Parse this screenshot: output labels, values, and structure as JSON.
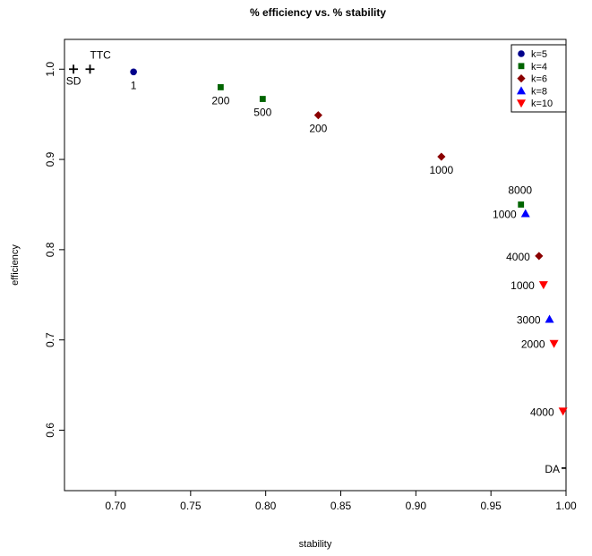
{
  "chart_data": {
    "type": "scatter",
    "title": "% efficiency vs. % stability",
    "xlabel": "stability",
    "ylabel": "efficiency",
    "xlim": [
      0.666,
      1.0
    ],
    "ylim": [
      0.533,
      1.033
    ],
    "x_ticks": [
      "0.70",
      "0.75",
      "0.80",
      "0.85",
      "0.90",
      "0.95",
      "1.00"
    ],
    "y_ticks": [
      "0.6",
      "0.7",
      "0.8",
      "0.9",
      "1.0"
    ],
    "legend_position": "top-right",
    "legend": [
      {
        "label": "k=5",
        "color": "#00008b",
        "shape": "circle"
      },
      {
        "label": "k=4",
        "color": "#006400",
        "shape": "square"
      },
      {
        "label": "k=6",
        "color": "#8b0000",
        "shape": "diamond"
      },
      {
        "label": "k=8",
        "color": "#0000ff",
        "shape": "triangle-up"
      },
      {
        "label": "k=10",
        "color": "#ff0000",
        "shape": "triangle-down"
      }
    ],
    "series": [
      {
        "name": "k=5",
        "color": "#00008b",
        "shape": "circle",
        "points": [
          {
            "x": 0.712,
            "y": 0.997,
            "label": "1"
          }
        ]
      },
      {
        "name": "k=4",
        "color": "#006400",
        "shape": "square",
        "points": [
          {
            "x": 0.77,
            "y": 0.98,
            "label": "200"
          },
          {
            "x": 0.798,
            "y": 0.967,
            "label": "500"
          },
          {
            "x": 0.97,
            "y": 0.85,
            "label": "8000"
          }
        ]
      },
      {
        "name": "k=6",
        "color": "#8b0000",
        "shape": "diamond",
        "points": [
          {
            "x": 0.835,
            "y": 0.949,
            "label": "200"
          },
          {
            "x": 0.917,
            "y": 0.903,
            "label": "1000"
          },
          {
            "x": 0.982,
            "y": 0.793,
            "label": "4000"
          }
        ]
      },
      {
        "name": "k=8",
        "color": "#0000ff",
        "shape": "triangle-up",
        "points": [
          {
            "x": 0.973,
            "y": 0.84,
            "label": "1000"
          },
          {
            "x": 0.989,
            "y": 0.723,
            "label": "3000"
          }
        ]
      },
      {
        "name": "k=10",
        "color": "#ff0000",
        "shape": "triangle-down",
        "points": [
          {
            "x": 0.985,
            "y": 0.761,
            "label": "1000"
          },
          {
            "x": 0.992,
            "y": 0.696,
            "label": "2000"
          },
          {
            "x": 0.998,
            "y": 0.621,
            "label": "4000"
          }
        ]
      },
      {
        "name": "baselines",
        "color": "#000000",
        "shape": "plus",
        "points": [
          {
            "x": 0.672,
            "y": 1.0,
            "label": "SD"
          },
          {
            "x": 0.683,
            "y": 1.0,
            "label": "TTC"
          },
          {
            "x": 1.0,
            "y": 0.558,
            "label": "DA"
          }
        ]
      }
    ]
  }
}
